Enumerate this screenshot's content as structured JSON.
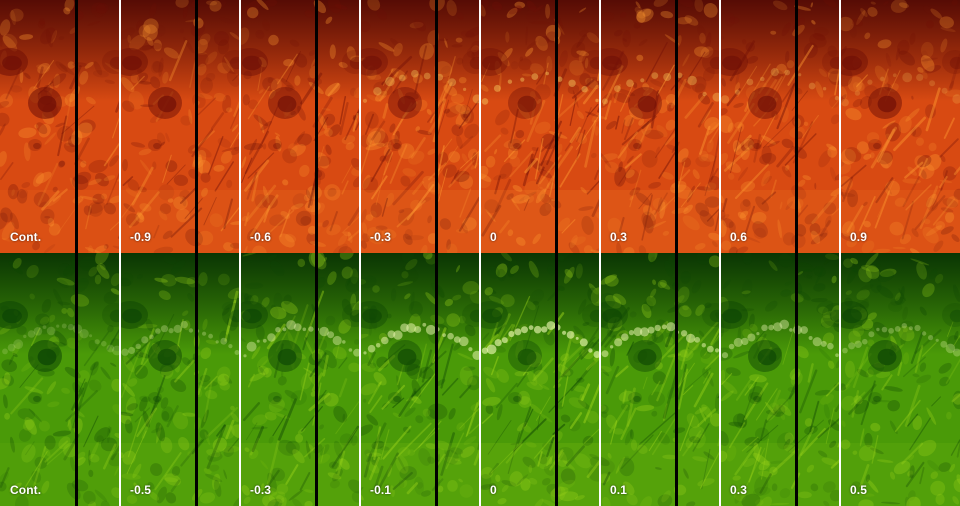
{
  "figure": {
    "rows": [
      {
        "name": "red",
        "colors": {
          "base": "#d84a12",
          "dark": "#6f0f06",
          "bright": "#ff9a31",
          "highlight": "#ffe16b"
        },
        "panels": [
          {
            "label": "Cont."
          },
          {
            "label": "-0.9"
          },
          {
            "label": "-0.6"
          },
          {
            "label": "-0.3"
          },
          {
            "label": "0"
          },
          {
            "label": "0.3"
          },
          {
            "label": "0.6"
          },
          {
            "label": "0.9"
          }
        ]
      },
      {
        "name": "green",
        "colors": {
          "base": "#4a9a08",
          "dark": "#0d4504",
          "bright": "#9bd31a",
          "highlight": "#eef8b5"
        },
        "panels": [
          {
            "label": "Cont."
          },
          {
            "label": "-0.5"
          },
          {
            "label": "-0.3"
          },
          {
            "label": "-0.1"
          },
          {
            "label": "0"
          },
          {
            "label": "0.1"
          },
          {
            "label": "0.3"
          },
          {
            "label": "0.5"
          }
        ]
      }
    ]
  }
}
